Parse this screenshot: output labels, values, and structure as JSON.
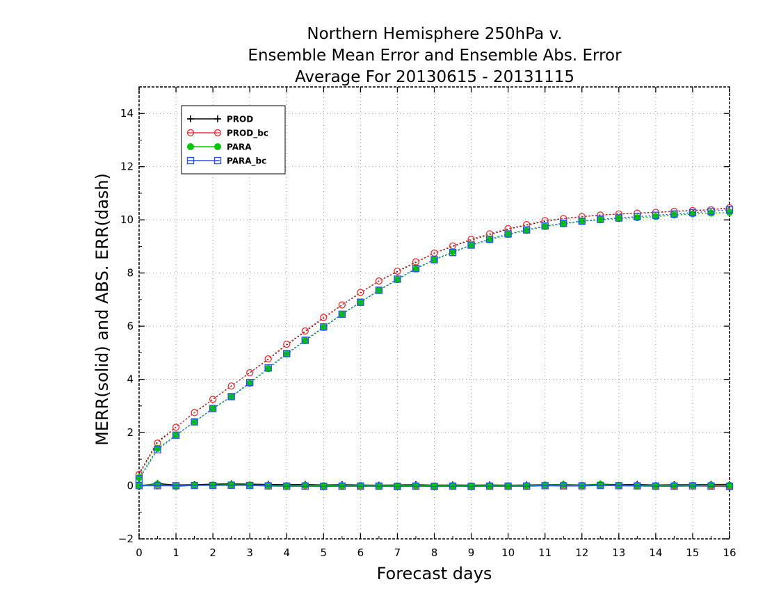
{
  "chart_data": {
    "type": "line",
    "title": [
      "Northern Hemisphere 250hPa v.",
      "Ensemble Mean Error and Ensemble Abs. Error",
      "Average For 20130615 - 20131115"
    ],
    "xlabel": "Forecast days",
    "ylabel": "MERR(solid) and ABS. ERR(dash)",
    "xlim": [
      0,
      16
    ],
    "ylim": [
      -2,
      15
    ],
    "xticks": [
      0,
      1,
      2,
      3,
      4,
      5,
      6,
      7,
      8,
      9,
      10,
      11,
      12,
      13,
      14,
      15,
      16
    ],
    "yticks": [
      -2,
      0,
      2,
      4,
      6,
      8,
      10,
      12,
      14
    ],
    "grid": true,
    "legend_position": "top-left",
    "x": [
      0,
      0.5,
      1,
      1.5,
      2,
      2.5,
      3,
      3.5,
      4,
      4.5,
      5,
      5.5,
      6,
      6.5,
      7,
      7.5,
      8,
      8.5,
      9,
      9.5,
      10,
      10.5,
      11,
      11.5,
      12,
      12.5,
      13,
      13.5,
      14,
      14.5,
      15,
      15.5,
      16
    ],
    "series": [
      {
        "name": "PROD",
        "color": "#000000",
        "marker": "plus",
        "merr": [
          0.0,
          0.08,
          0.03,
          0.04,
          0.06,
          0.07,
          0.06,
          0.05,
          0.04,
          0.05,
          0.03,
          0.04,
          0.03,
          0.02,
          0.03,
          0.04,
          0.02,
          0.03,
          0.02,
          0.03,
          0.02,
          0.03,
          0.04,
          0.05,
          0.03,
          0.06,
          0.04,
          0.05,
          0.03,
          0.04,
          0.04,
          0.05,
          0.05
        ],
        "abs_err": [
          0.45,
          1.65,
          2.2,
          2.75,
          3.25,
          3.75,
          4.25,
          4.75,
          5.3,
          5.8,
          6.3,
          6.8,
          7.25,
          7.7,
          8.05,
          8.4,
          8.75,
          9.0,
          9.25,
          9.45,
          9.65,
          9.8,
          9.95,
          10.05,
          10.12,
          10.18,
          10.22,
          10.25,
          10.28,
          10.32,
          10.35,
          10.38,
          10.45
        ]
      },
      {
        "name": "PROD_bc",
        "color": "#e8383a",
        "marker": "circle",
        "merr": [
          0.0,
          0.02,
          0.01,
          0.02,
          0.02,
          0.03,
          0.02,
          0.01,
          0.0,
          0.01,
          -0.01,
          0.0,
          -0.01,
          -0.01,
          -0.02,
          0.0,
          -0.02,
          -0.01,
          -0.02,
          -0.01,
          -0.01,
          0.0,
          0.01,
          0.0,
          0.0,
          0.02,
          0.01,
          0.0,
          -0.01,
          0.0,
          0.01,
          0.0,
          -0.01
        ],
        "abs_err": [
          0.42,
          1.6,
          2.2,
          2.75,
          3.25,
          3.75,
          4.25,
          4.77,
          5.32,
          5.82,
          6.33,
          6.8,
          7.27,
          7.7,
          8.07,
          8.42,
          8.75,
          9.02,
          9.27,
          9.47,
          9.67,
          9.82,
          9.97,
          10.05,
          10.12,
          10.18,
          10.22,
          10.25,
          10.28,
          10.32,
          10.35,
          10.38,
          10.45
        ]
      },
      {
        "name": "PARA",
        "color": "#00c800",
        "marker": "dot",
        "merr": [
          0.0,
          0.06,
          -0.03,
          0.02,
          0.03,
          0.04,
          0.03,
          0.02,
          0.0,
          0.02,
          0.0,
          0.01,
          0.01,
          0.0,
          -0.01,
          0.01,
          -0.01,
          0.0,
          -0.01,
          0.0,
          0.0,
          0.01,
          0.03,
          0.04,
          0.02,
          0.05,
          0.02,
          0.02,
          0.01,
          0.02,
          0.02,
          0.03,
          0.02
        ],
        "abs_err": [
          0.3,
          1.4,
          1.9,
          2.4,
          2.9,
          3.35,
          3.85,
          4.4,
          4.95,
          5.45,
          5.95,
          6.45,
          6.9,
          7.35,
          7.75,
          8.15,
          8.5,
          8.8,
          9.05,
          9.25,
          9.45,
          9.6,
          9.75,
          9.85,
          9.95,
          10.0,
          10.05,
          10.08,
          10.12,
          10.18,
          10.22,
          10.25,
          10.28
        ]
      },
      {
        "name": "PARA_bc",
        "color": "#2855e6",
        "marker": "square",
        "merr": [
          0.0,
          0.0,
          0.0,
          0.01,
          0.01,
          0.02,
          0.01,
          -0.01,
          -0.02,
          -0.02,
          -0.03,
          -0.02,
          -0.02,
          -0.02,
          -0.03,
          -0.02,
          -0.03,
          -0.02,
          -0.03,
          -0.02,
          -0.02,
          -0.02,
          0.0,
          -0.01,
          -0.01,
          0.01,
          0.0,
          -0.01,
          -0.02,
          -0.02,
          -0.01,
          -0.02,
          -0.03
        ],
        "abs_err": [
          0.25,
          1.35,
          1.9,
          2.4,
          2.9,
          3.35,
          3.88,
          4.43,
          4.97,
          5.47,
          5.97,
          6.45,
          6.9,
          7.35,
          7.77,
          8.17,
          8.5,
          8.77,
          9.05,
          9.27,
          9.47,
          9.62,
          9.77,
          9.87,
          9.95,
          10.02,
          10.07,
          10.12,
          10.17,
          10.22,
          10.27,
          10.32,
          10.38
        ]
      }
    ]
  }
}
